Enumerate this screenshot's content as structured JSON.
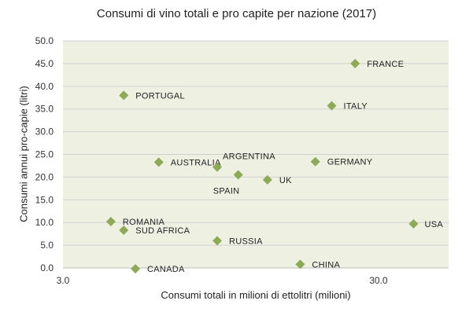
{
  "chart_data": {
    "type": "scatter",
    "title": "Consumi di vino totali e pro capite per nazione (2017)",
    "xlabel": "Consumi totali in milioni di ettolitri (milioni)",
    "ylabel": "Consumi annui pro-capie (litri)",
    "xlim": [
      3.0,
      36.0
    ],
    "ylim": [
      0,
      50
    ],
    "x_ticks": [
      "3.0",
      "30.0"
    ],
    "x_tick_values": [
      3.0,
      30.0
    ],
    "y_ticks": [
      "0.0",
      "5.0",
      "10.0",
      "15.0",
      "20.0",
      "25.0",
      "30.0",
      "35.0",
      "40.0",
      "45.0",
      "50.0"
    ],
    "y_tick_values": [
      0,
      5,
      10,
      15,
      20,
      25,
      30,
      35,
      40,
      45,
      50
    ],
    "grid": "horizontal",
    "plot_background": "#eef0e2",
    "gridline_color": "#d0d0d0",
    "marker_color": "#8daa56",
    "marker_shape": "diamond",
    "points": [
      {
        "label": "FRANCE",
        "x": 28.0,
        "y": 45.0
      },
      {
        "label": "PORTUGAL",
        "x": 8.2,
        "y": 38.0
      },
      {
        "label": "ITALY",
        "x": 26.0,
        "y": 35.7
      },
      {
        "label": "AUSTRALIA",
        "x": 11.2,
        "y": 23.3
      },
      {
        "label": "ARGENTINA",
        "x": 16.2,
        "y": 22.2
      },
      {
        "label": "SPAIN",
        "x": 18.0,
        "y": 20.5
      },
      {
        "label": "UK",
        "x": 20.5,
        "y": 19.4
      },
      {
        "label": "GERMANY",
        "x": 24.6,
        "y": 23.4
      },
      {
        "label": "ROMANIA",
        "x": 7.1,
        "y": 10.2
      },
      {
        "label": "SUD AFRICA",
        "x": 8.2,
        "y": 8.3
      },
      {
        "label": "RUSSIA",
        "x": 16.2,
        "y": 6.0
      },
      {
        "label": "CANADA",
        "x": 9.2,
        "y": -0.2
      },
      {
        "label": "CHINA",
        "x": 23.3,
        "y": 0.8
      },
      {
        "label": "USA",
        "x": 33.0,
        "y": 9.7
      }
    ]
  }
}
